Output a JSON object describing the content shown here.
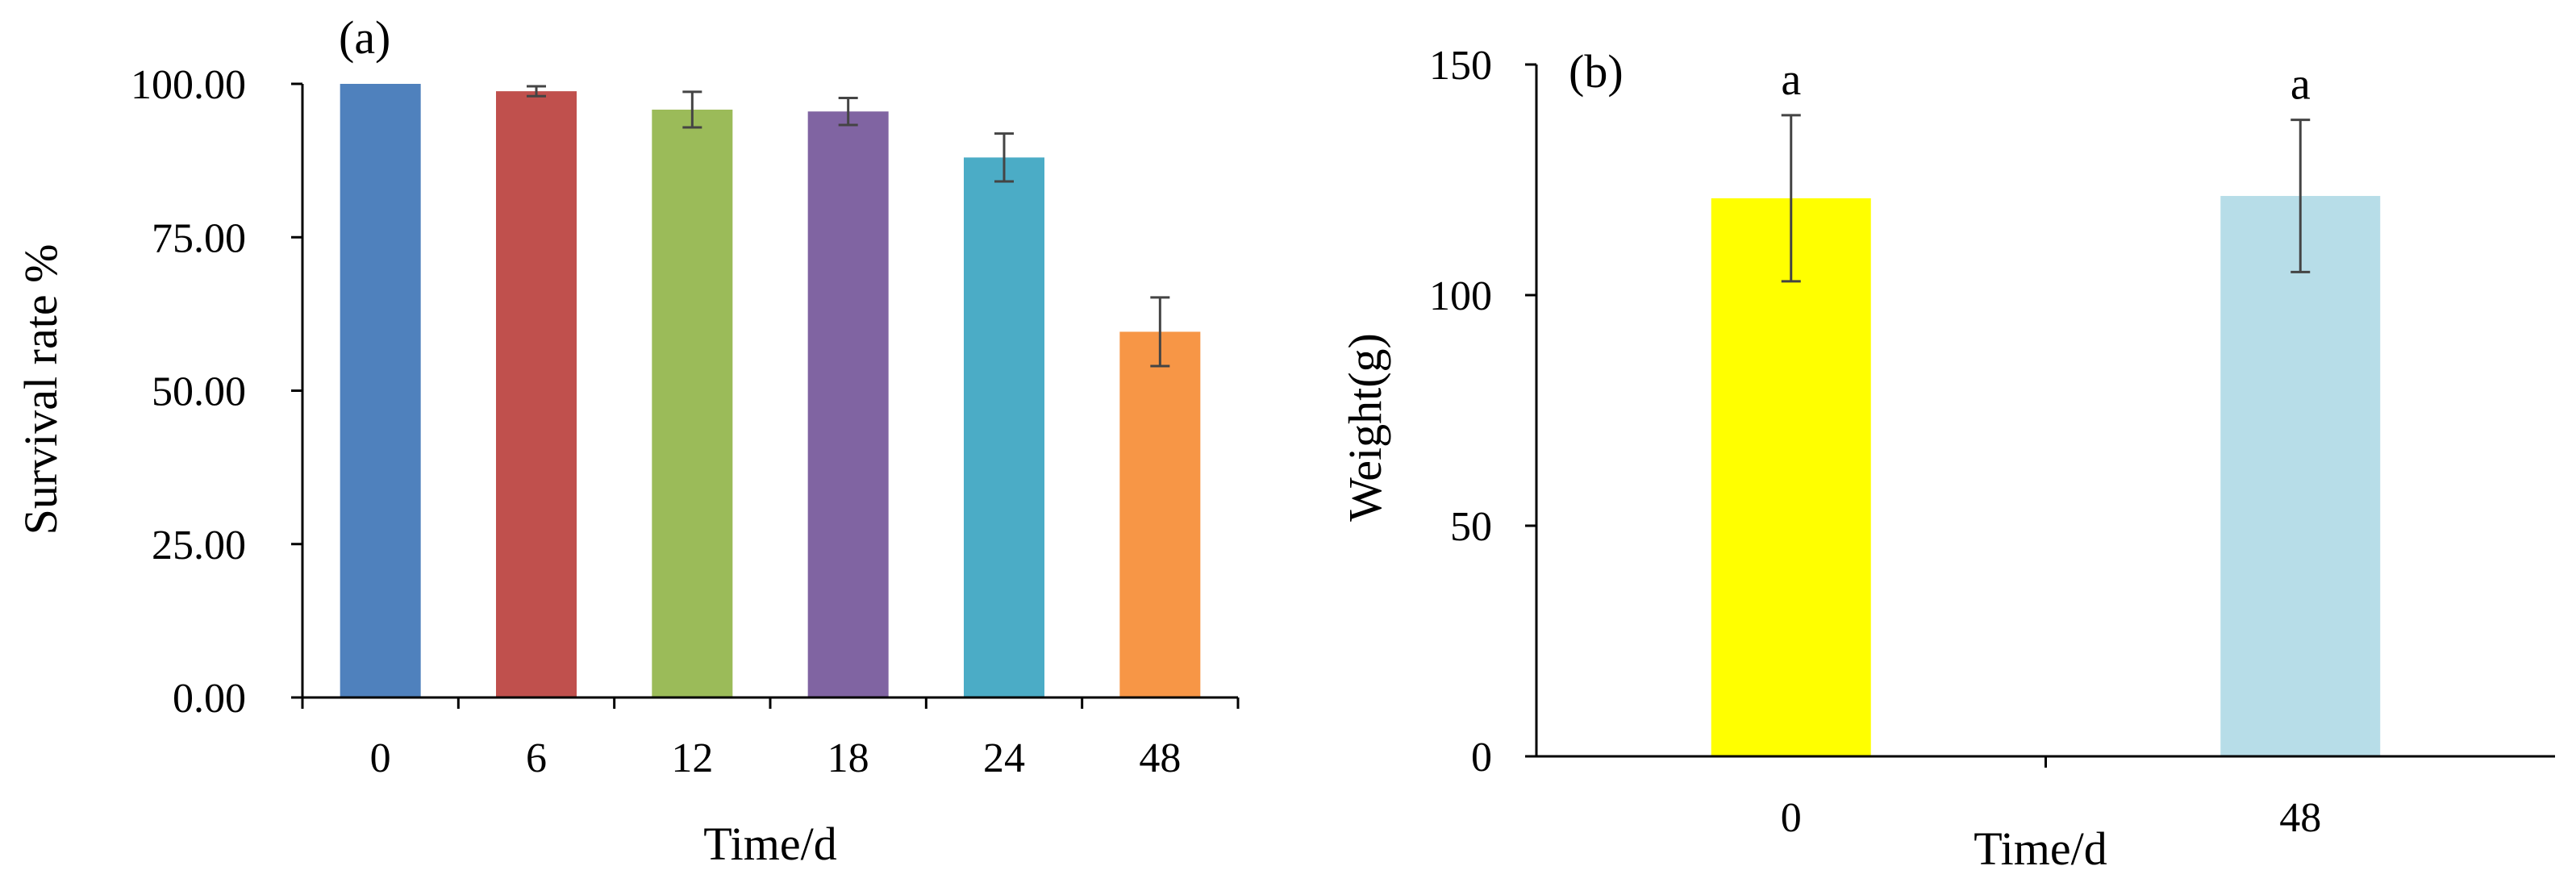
{
  "chart_data": [
    {
      "panel_label": "(a)",
      "type": "bar",
      "xlabel": "Time/d",
      "ylabel": "Survival rate %",
      "categories": [
        "0",
        "6",
        "12",
        "18",
        "24",
        "48"
      ],
      "values": [
        100.0,
        98.8,
        95.8,
        95.5,
        88.0,
        59.6
      ],
      "errors": [
        0.0,
        0.8,
        2.9,
        2.2,
        3.9,
        5.6
      ],
      "bar_colors": [
        "#4f81bd",
        "#c0504d",
        "#9bbb59",
        "#8064a2",
        "#4bacc6",
        "#f79646"
      ],
      "ylim": [
        0,
        100
      ],
      "yticks": [
        0,
        25,
        50,
        75,
        100
      ],
      "ytick_labels": [
        "0.00",
        "25.00",
        "50.00",
        "75.00",
        "100.00"
      ],
      "grid": false
    },
    {
      "panel_label": "(b)",
      "type": "bar",
      "xlabel": "Time/d",
      "ylabel": "Weight(g)",
      "categories": [
        "0",
        "48"
      ],
      "values": [
        121,
        121.5
      ],
      "errors": [
        18,
        16.5
      ],
      "annotations": [
        "a",
        "a"
      ],
      "bar_colors": [
        "#ffff00",
        "#b7dde8"
      ],
      "ylim": [
        0,
        150
      ],
      "yticks": [
        0,
        50,
        100,
        150
      ],
      "ytick_labels": [
        "0",
        "50",
        "100",
        "150"
      ],
      "grid": false
    }
  ]
}
